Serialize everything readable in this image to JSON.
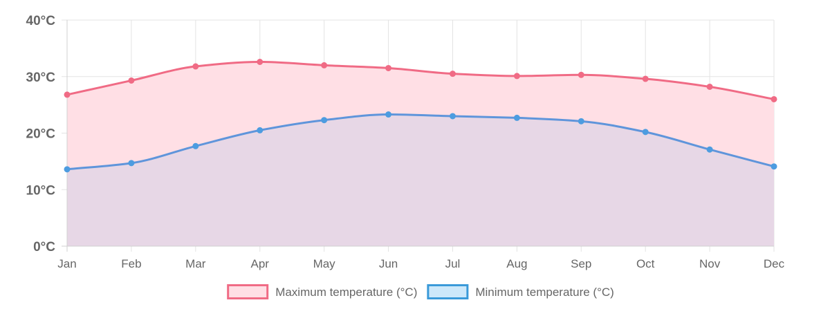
{
  "chart_data": {
    "type": "area",
    "title": "",
    "xlabel": "",
    "ylabel": "",
    "categories": [
      "Jan",
      "Feb",
      "Mar",
      "Apr",
      "May",
      "Jun",
      "Jul",
      "Aug",
      "Sep",
      "Oct",
      "Nov",
      "Dec"
    ],
    "ylim": [
      0,
      40
    ],
    "y_ticks": [
      0,
      10,
      20,
      30,
      40
    ],
    "y_tick_labels": [
      "0°C",
      "10°C",
      "20°C",
      "30°C",
      "40°C"
    ],
    "grid": true,
    "legend_position": "bottom",
    "series": [
      {
        "name": "Maximum temperature (°C)",
        "values": [
          26.8,
          29.3,
          31.8,
          32.6,
          32.0,
          31.5,
          30.5,
          30.1,
          30.3,
          29.6,
          28.2,
          26.0
        ],
        "line_color": "#f06b85",
        "fill_color": "#ffdfe5",
        "point_color": "#f06b85"
      },
      {
        "name": "Minimum temperature (°C)",
        "values": [
          13.6,
          14.7,
          17.7,
          20.5,
          22.3,
          23.3,
          23.0,
          22.7,
          22.1,
          20.2,
          17.1,
          14.1
        ],
        "line_color": "#5f95db",
        "fill_color": "rgba(54,162,235,0.12)",
        "point_color": "#4d9ce0"
      }
    ]
  }
}
